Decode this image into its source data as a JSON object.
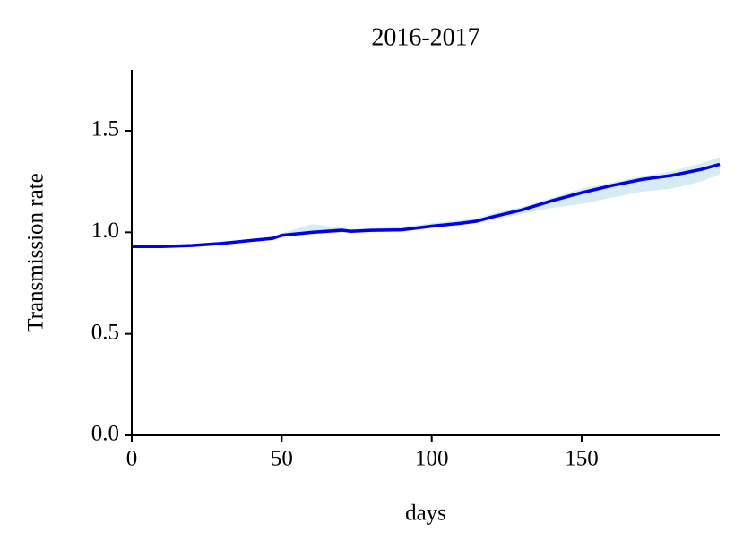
{
  "chart_data": {
    "type": "line",
    "title": "2016-2017",
    "xlabel": "days",
    "ylabel": "Transmission rate",
    "x": [
      0,
      10,
      20,
      30,
      40,
      47,
      50,
      60,
      70,
      73,
      80,
      90,
      100,
      110,
      115,
      120,
      130,
      140,
      150,
      160,
      170,
      180,
      190,
      196
    ],
    "series": [
      {
        "color": "#0000ee",
        "values": [
          0.93,
          0.93,
          0.935,
          0.945,
          0.96,
          0.97,
          0.985,
          1.0,
          1.01,
          1.005,
          1.01,
          1.012,
          1.03,
          1.045,
          1.055,
          1.075,
          1.11,
          1.155,
          1.195,
          1.23,
          1.26,
          1.28,
          1.31,
          1.335
        ]
      }
    ],
    "band": {
      "color": "#d6ebf3",
      "lower": [
        0.925,
        0.925,
        0.93,
        0.94,
        0.955,
        0.965,
        0.98,
        0.99,
        1.0,
        1.0,
        1.0,
        1.005,
        1.02,
        1.035,
        1.045,
        1.06,
        1.09,
        1.12,
        1.14,
        1.17,
        1.2,
        1.215,
        1.25,
        1.285
      ],
      "upper": [
        0.935,
        0.935,
        0.94,
        0.95,
        0.965,
        0.975,
        0.995,
        1.04,
        1.02,
        1.015,
        1.02,
        1.025,
        1.045,
        1.06,
        1.07,
        1.09,
        1.125,
        1.17,
        1.215,
        1.245,
        1.275,
        1.3,
        1.34,
        1.37
      ]
    },
    "xlim": [
      0,
      196
    ],
    "xticks": [
      0,
      50,
      100,
      150
    ],
    "ylim": [
      0,
      1.8
    ],
    "yticks": [
      {
        "value": 0,
        "label": "0.0"
      },
      {
        "value": 0.5,
        "label": "0.5"
      },
      {
        "value": 1,
        "label": "1.0"
      },
      {
        "value": 1.5,
        "label": "1.5"
      }
    ]
  }
}
